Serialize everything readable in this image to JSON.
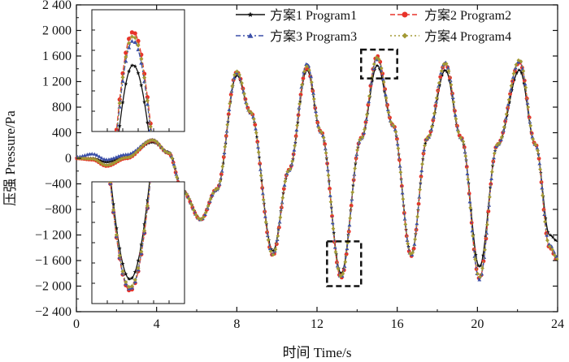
{
  "chart_data": {
    "type": "line",
    "title": "",
    "xlabel": "时间 Time/s",
    "ylabel": "压强 Pressure/Pa",
    "xlim": [
      0,
      24
    ],
    "ylim": [
      -2400,
      2400
    ],
    "x_ticks": [
      0,
      4,
      8,
      12,
      16,
      20,
      24
    ],
    "y_ticks": [
      -2400,
      -2000,
      -1600,
      -1200,
      -800,
      -400,
      0,
      400,
      800,
      1200,
      1600,
      2000,
      2400
    ],
    "x_tick_labels": [
      "0",
      "4",
      "8",
      "12",
      "16",
      "20",
      "24"
    ],
    "y_tick_labels": [
      "−2 400",
      "−2 000",
      "−1 600",
      "−1 200",
      "−800",
      "−400",
      "0",
      "400",
      "800",
      "1 200",
      "1 600",
      "2 000",
      "2 400"
    ],
    "grid": false,
    "legend_position": "top-right",
    "series": [
      {
        "name": "方案1 Program1",
        "color": "#111111",
        "marker": "star",
        "key_points": [
          [
            0,
            0
          ],
          [
            0.8,
            0
          ],
          [
            1.5,
            -60
          ],
          [
            2.5,
            20
          ],
          [
            3.8,
            250
          ],
          [
            4.6,
            100
          ],
          [
            5.3,
            -500
          ],
          [
            6.2,
            -950
          ],
          [
            7.0,
            -500
          ],
          [
            8.0,
            1300
          ],
          [
            8.7,
            700
          ],
          [
            9.8,
            -1450
          ],
          [
            10.6,
            -200
          ],
          [
            11.5,
            1380
          ],
          [
            12.2,
            400
          ],
          [
            13.2,
            -1800
          ],
          [
            14.2,
            300
          ],
          [
            15.0,
            1450
          ],
          [
            15.8,
            500
          ],
          [
            16.7,
            -1500
          ],
          [
            17.5,
            300
          ],
          [
            18.4,
            1380
          ],
          [
            19.2,
            300
          ],
          [
            20.1,
            -1700
          ],
          [
            21.0,
            200
          ],
          [
            22.1,
            1380
          ],
          [
            22.9,
            200
          ],
          [
            23.6,
            -1200
          ],
          [
            24.0,
            -1300
          ]
        ]
      },
      {
        "name": "方案2 Program2",
        "color": "#e8332a",
        "marker": "circle",
        "key_points": [
          [
            0,
            0
          ],
          [
            0.8,
            -20
          ],
          [
            1.5,
            -120
          ],
          [
            2.5,
            0
          ],
          [
            3.8,
            280
          ],
          [
            4.6,
            80
          ],
          [
            5.3,
            -520
          ],
          [
            6.2,
            -960
          ],
          [
            7.0,
            -480
          ],
          [
            8.0,
            1350
          ],
          [
            8.7,
            720
          ],
          [
            9.8,
            -1520
          ],
          [
            10.6,
            -180
          ],
          [
            11.5,
            1420
          ],
          [
            12.2,
            420
          ],
          [
            13.2,
            -1870
          ],
          [
            14.2,
            320
          ],
          [
            15.0,
            1600
          ],
          [
            15.8,
            520
          ],
          [
            16.7,
            -1530
          ],
          [
            17.5,
            320
          ],
          [
            18.4,
            1480
          ],
          [
            19.2,
            320
          ],
          [
            20.1,
            -1880
          ],
          [
            21.0,
            220
          ],
          [
            22.1,
            1500
          ],
          [
            22.9,
            220
          ],
          [
            23.6,
            -1400
          ],
          [
            24.0,
            -1600
          ]
        ]
      },
      {
        "name": "方案3 Program3",
        "color": "#3b4fa8",
        "marker": "triangle",
        "key_points": [
          [
            0,
            20
          ],
          [
            0.8,
            70
          ],
          [
            1.5,
            -20
          ],
          [
            2.5,
            60
          ],
          [
            3.8,
            290
          ],
          [
            4.6,
            90
          ],
          [
            5.3,
            -510
          ],
          [
            6.2,
            -960
          ],
          [
            7.0,
            -490
          ],
          [
            8.0,
            1340
          ],
          [
            8.7,
            710
          ],
          [
            9.8,
            -1500
          ],
          [
            10.6,
            -190
          ],
          [
            11.5,
            1480
          ],
          [
            12.2,
            410
          ],
          [
            13.2,
            -1860
          ],
          [
            14.2,
            310
          ],
          [
            15.0,
            1560
          ],
          [
            15.8,
            510
          ],
          [
            16.7,
            -1520
          ],
          [
            17.5,
            310
          ],
          [
            18.4,
            1500
          ],
          [
            19.2,
            310
          ],
          [
            20.1,
            -1900
          ],
          [
            21.0,
            210
          ],
          [
            22.1,
            1520
          ],
          [
            22.9,
            210
          ],
          [
            23.6,
            -1350
          ],
          [
            24.0,
            -1550
          ]
        ]
      },
      {
        "name": "方案4 Program4",
        "color": "#a39a35",
        "marker": "diamond",
        "key_points": [
          [
            0,
            0
          ],
          [
            0.8,
            -10
          ],
          [
            1.5,
            -110
          ],
          [
            2.5,
            10
          ],
          [
            3.8,
            285
          ],
          [
            4.6,
            85
          ],
          [
            5.3,
            -515
          ],
          [
            6.2,
            -955
          ],
          [
            7.0,
            -485
          ],
          [
            8.0,
            1360
          ],
          [
            8.7,
            715
          ],
          [
            9.8,
            -1510
          ],
          [
            10.6,
            -185
          ],
          [
            11.5,
            1440
          ],
          [
            12.2,
            415
          ],
          [
            13.2,
            -1850
          ],
          [
            14.2,
            315
          ],
          [
            15.0,
            1580
          ],
          [
            15.8,
            515
          ],
          [
            16.7,
            -1510
          ],
          [
            17.5,
            315
          ],
          [
            18.4,
            1490
          ],
          [
            19.2,
            315
          ],
          [
            20.1,
            -1860
          ],
          [
            21.0,
            215
          ],
          [
            22.1,
            1540
          ],
          [
            22.9,
            215
          ],
          [
            23.6,
            -1380
          ],
          [
            24.0,
            -1580
          ]
        ]
      }
    ],
    "annotations": [
      {
        "type": "dashed-box",
        "x": [
          14.2,
          16.0
        ],
        "y": [
          1250,
          1700
        ]
      },
      {
        "type": "dashed-box",
        "x": [
          12.5,
          14.2
        ],
        "y": [
          -2000,
          -1300
        ]
      },
      {
        "type": "inset",
        "corner": "top-left",
        "shows": "zoom of peak near t=15 s"
      },
      {
        "type": "inset",
        "corner": "bottom-left",
        "shows": "zoom of trough near t=13 s"
      }
    ]
  }
}
